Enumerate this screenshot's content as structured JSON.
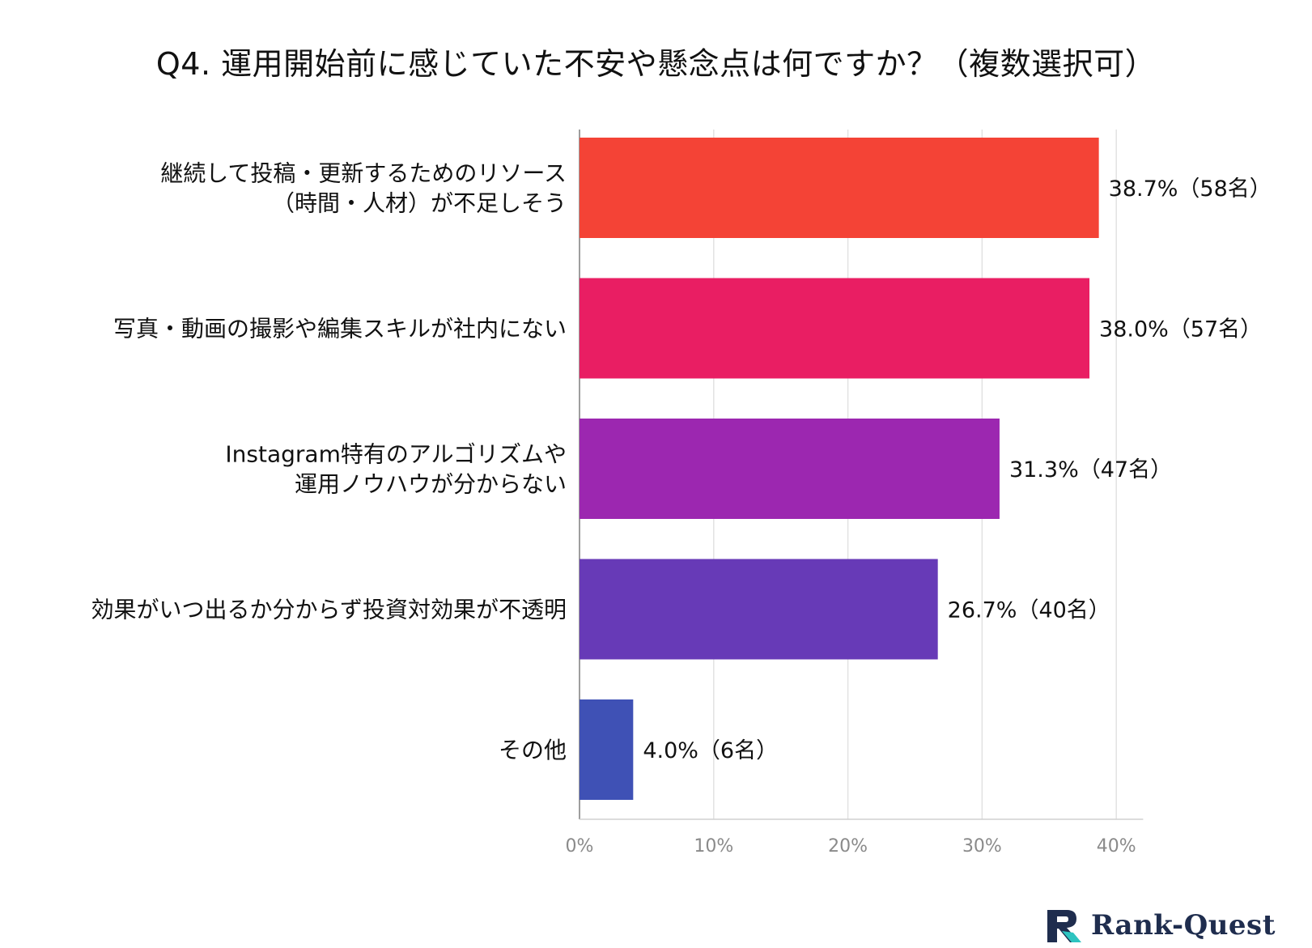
{
  "chart_data": {
    "type": "bar",
    "orientation": "horizontal",
    "title": "Q4. 運用開始前に感じていた不安や懸念点は何ですか？（複数選択可）",
    "categories": [
      [
        "継続して投稿・更新するためのリソース",
        "（時間・人材）が不足しそう"
      ],
      [
        "写真・動画の撮影や編集スキルが社内にない"
      ],
      [
        "Instagram特有のアルゴリズムや",
        "運用ノウハウが分からない"
      ],
      [
        "効果がいつ出るか分からず投資対効果が不透明"
      ],
      [
        "その他"
      ]
    ],
    "values": [
      38.7,
      38.0,
      31.3,
      26.7,
      4.0
    ],
    "value_labels": [
      "38.7%（58名）",
      "38.0%（57名）",
      "31.3%（47名）",
      "26.7%（40名）",
      "4.0%（6名）"
    ],
    "colors": [
      "#f44336",
      "#e91e63",
      "#9c27b0",
      "#673ab7",
      "#3f51b5"
    ],
    "xlim": [
      0,
      42
    ],
    "xticks": [
      0,
      10,
      20,
      30,
      40
    ],
    "xtick_labels": [
      "0%",
      "10%",
      "20%",
      "30%",
      "40%"
    ],
    "grid": true
  },
  "logo": {
    "text": "Rank-Quest",
    "icon": "rank-quest-logo-icon"
  }
}
